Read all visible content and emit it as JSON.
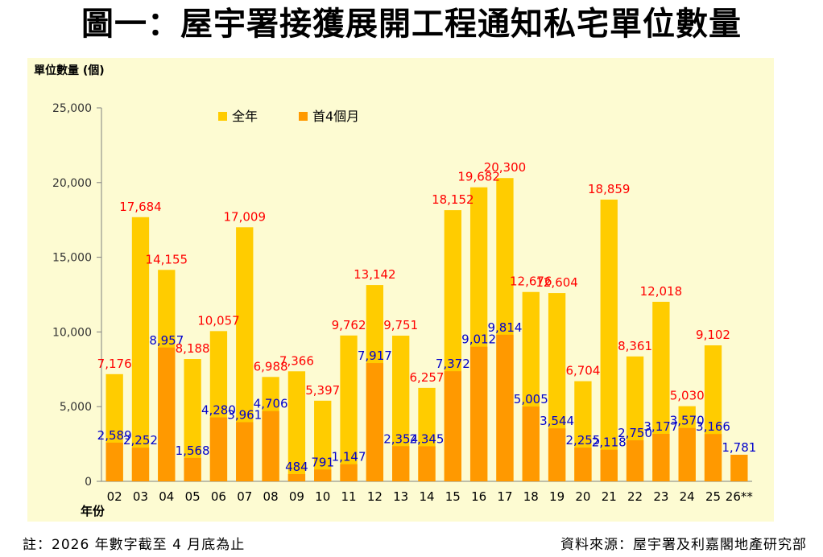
{
  "title": "圖一：屋宇署接獲展開工程通知私宅單位數量",
  "footnote": "註：2026 年數字截至 4 月底為止",
  "source": "資料來源：屋宇署及利嘉閣地產研究部",
  "colors": {
    "panel_bg": "#fdfbd2",
    "full_year": "#ffcc00",
    "first_4_months": "#ff9900",
    "full_year_label": "#ff0000",
    "first_4_label": "#0000cc"
  },
  "chart_data": {
    "type": "bar",
    "ylabel": "單位數量 (個)",
    "xlabel": "年份",
    "ylim": [
      0,
      25000
    ],
    "yticks": [
      0,
      5000,
      10000,
      15000,
      20000,
      25000
    ],
    "ytick_labels": [
      "0",
      "5,000",
      "10,000",
      "15,000",
      "20,000",
      "25,000"
    ],
    "grid": false,
    "legend_position": "top-left",
    "categories": [
      "02",
      "03",
      "04",
      "05",
      "06",
      "07",
      "08",
      "09",
      "10",
      "11",
      "12",
      "13",
      "14",
      "15",
      "16",
      "17",
      "18",
      "19",
      "20",
      "21",
      "22",
      "23",
      "24",
      "25",
      "26**"
    ],
    "series": [
      {
        "name": "全年",
        "values": [
          7176,
          17684,
          14155,
          8188,
          10057,
          17009,
          6988,
          7366,
          5397,
          9762,
          13142,
          9751,
          6257,
          18152,
          19682,
          20300,
          12676,
          12604,
          6704,
          18859,
          8361,
          12018,
          5030,
          9102,
          null
        ],
        "labels": [
          "7,176",
          "17,684",
          "14,155",
          "8,188",
          "10,057",
          "17,009",
          "6,988",
          "7,366",
          "5,397",
          "9,762",
          "13,142",
          "9,751",
          "6,257",
          "18,152",
          "19,682",
          "20,300",
          "12,676",
          "12,604",
          "6,704",
          "18,859",
          "8,361",
          "12,018",
          "5,030",
          "9,102",
          ""
        ]
      },
      {
        "name": "首4個月",
        "values": [
          2589,
          2252,
          8957,
          1568,
          4280,
          3961,
          4706,
          484,
          791,
          1147,
          7917,
          2354,
          2345,
          7372,
          9012,
          9814,
          5005,
          3544,
          2255,
          2118,
          2750,
          3177,
          3570,
          3166,
          1781
        ],
        "labels": [
          "2,589",
          "2,252",
          "8,957",
          "1,568",
          "4,280",
          "3,961",
          "4,706",
          "484",
          "791",
          "1,147",
          "7,917",
          "2,354",
          "2,345",
          "7,372",
          "9,012",
          "9,814",
          "5,005",
          "3,544",
          "2,255",
          "2,118",
          "2,750",
          "3,177",
          "3,570",
          "3,166",
          "1,781"
        ]
      }
    ]
  }
}
